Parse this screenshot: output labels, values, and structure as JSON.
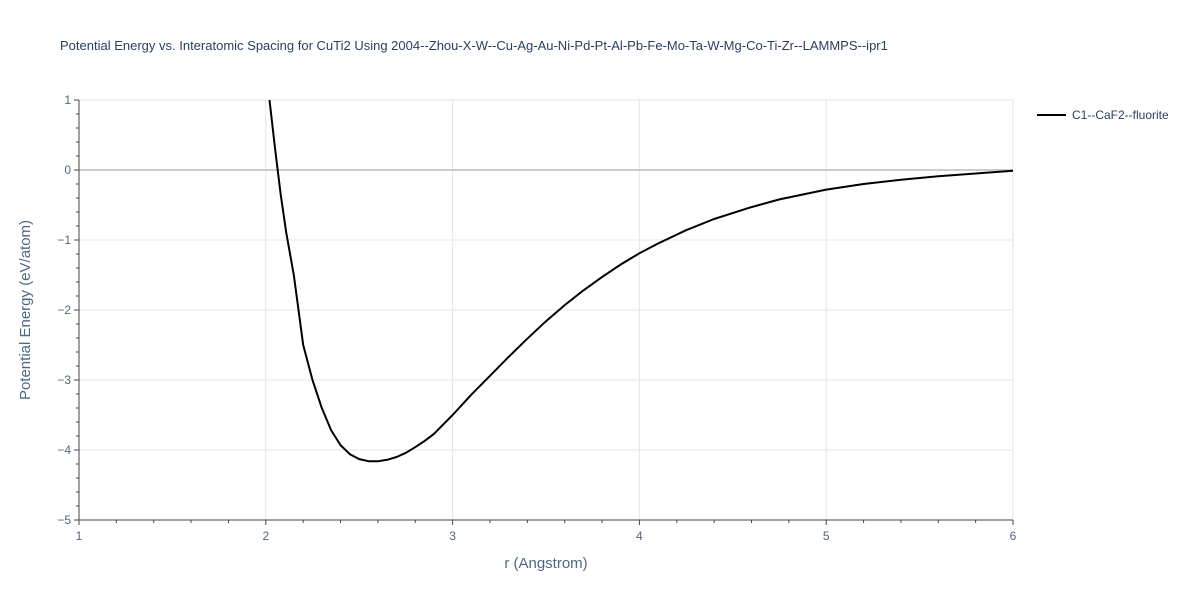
{
  "chart_data": {
    "type": "line",
    "title": "Potential Energy vs. Interatomic Spacing for CuTi2 Using 2004--Zhou-X-W--Cu-Ag-Au-Ni-Pd-Pt-Al-Pb-Fe-Mo-Ta-W-Mg-Co-Ti-Zr--LAMMPS--ipr1",
    "xlabel": "r (Angstrom)",
    "ylabel": "Potential Energy (eV/atom)",
    "xlim": [
      1,
      6
    ],
    "ylim": [
      -5,
      1
    ],
    "x_ticks": [
      1,
      2,
      3,
      4,
      5,
      6
    ],
    "x_tick_labels": [
      "1",
      "2",
      "3",
      "4",
      "5",
      "6"
    ],
    "y_ticks": [
      1,
      0,
      -1,
      -2,
      -3,
      -4,
      -5
    ],
    "y_tick_labels": [
      "1",
      "0",
      "−1",
      "−2",
      "−3",
      "−4",
      "−5"
    ],
    "grid": true,
    "legend_position": "top-right",
    "series": [
      {
        "name": "C1--CaF2--fluorite",
        "color": "#000000",
        "x": [
          2.02,
          2.05,
          2.08,
          2.11,
          2.15,
          2.2,
          2.25,
          2.3,
          2.35,
          2.4,
          2.45,
          2.5,
          2.55,
          2.6,
          2.65,
          2.7,
          2.75,
          2.8,
          2.85,
          2.9,
          3.0,
          3.1,
          3.2,
          3.3,
          3.4,
          3.5,
          3.6,
          3.7,
          3.8,
          3.9,
          4.0,
          4.1,
          4.25,
          4.4,
          4.6,
          4.75,
          5.0,
          5.2,
          5.4,
          5.6,
          5.8,
          6.0
        ],
        "y": [
          1.0,
          0.3,
          -0.35,
          -0.9,
          -1.5,
          -2.5,
          -3.0,
          -3.4,
          -3.72,
          -3.93,
          -4.06,
          -4.13,
          -4.16,
          -4.16,
          -4.14,
          -4.1,
          -4.04,
          -3.96,
          -3.87,
          -3.77,
          -3.5,
          -3.21,
          -2.94,
          -2.67,
          -2.41,
          -2.16,
          -1.93,
          -1.72,
          -1.53,
          -1.35,
          -1.19,
          -1.05,
          -0.86,
          -0.7,
          -0.53,
          -0.42,
          -0.28,
          -0.2,
          -0.14,
          -0.09,
          -0.05,
          -0.01
        ]
      }
    ]
  }
}
